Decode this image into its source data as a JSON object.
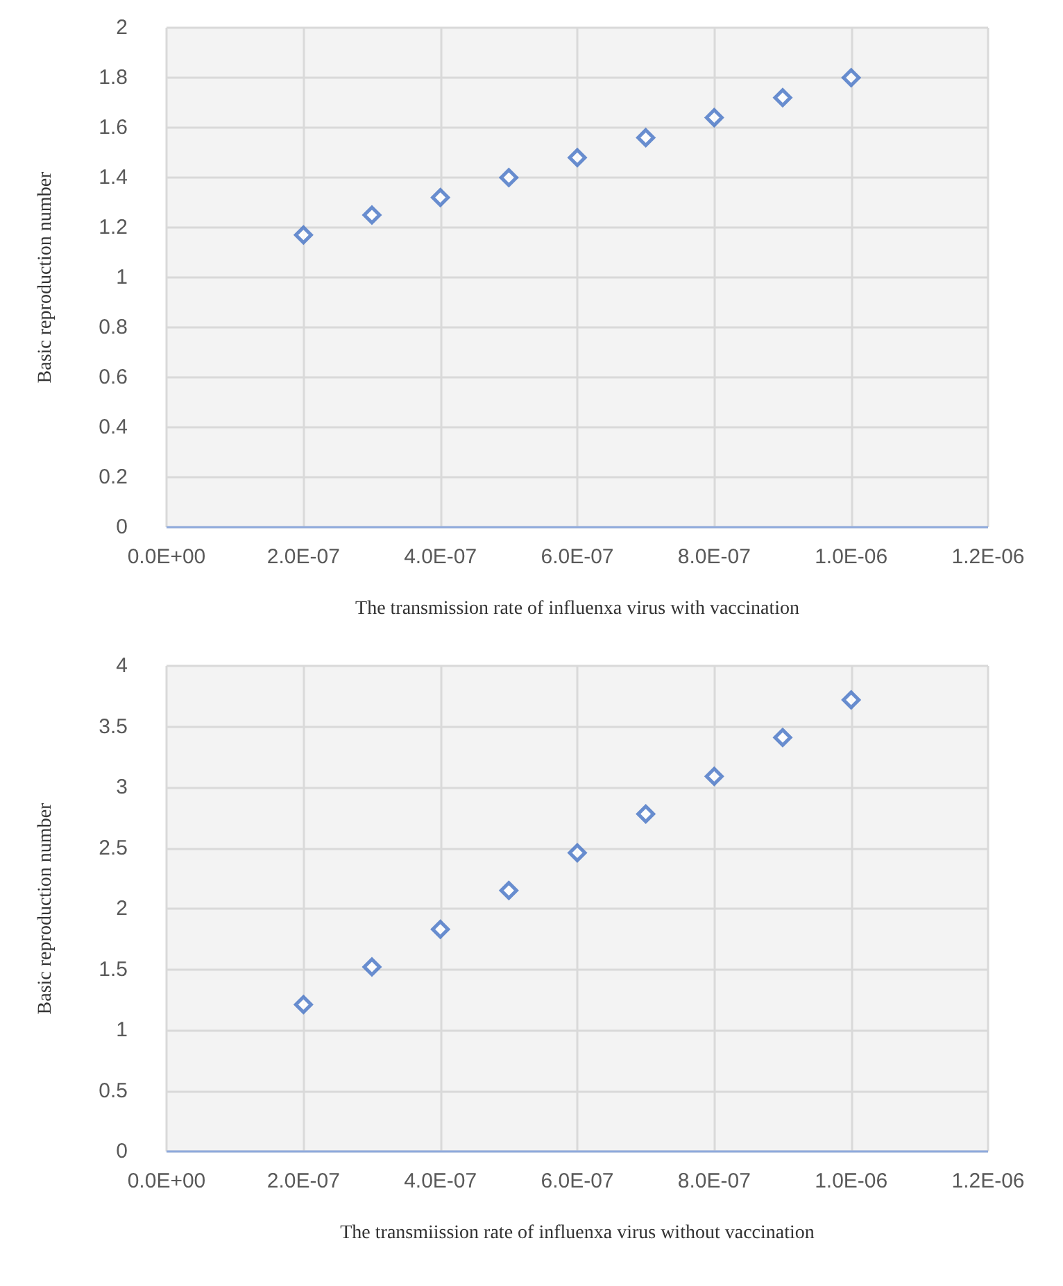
{
  "chart_data": [
    {
      "type": "scatter",
      "xlabel": "The transmission rate of influenxa virus with vaccination",
      "ylabel": "Basic reproduction number",
      "x": [
        2e-07,
        3e-07,
        4e-07,
        5e-07,
        6e-07,
        7e-07,
        8e-07,
        9e-07,
        1e-06
      ],
      "series": [
        {
          "color": "#4472c4",
          "values": [
            1.17,
            1.25,
            1.32,
            1.4,
            1.48,
            1.56,
            1.64,
            1.72,
            1.8
          ]
        }
      ],
      "xlim": [
        0,
        1.2e-06
      ],
      "xticks": [
        {
          "value": 0,
          "label": "0.0E+00"
        },
        {
          "value": 2e-07,
          "label": "2.0E-07"
        },
        {
          "value": 4e-07,
          "label": "4.0E-07"
        },
        {
          "value": 6e-07,
          "label": "6.0E-07"
        },
        {
          "value": 8e-07,
          "label": "8.0E-07"
        },
        {
          "value": 1e-06,
          "label": "1.0E-06"
        },
        {
          "value": 1.2e-06,
          "label": "1.2E-06"
        }
      ],
      "ylim": [
        0,
        2
      ],
      "yticks": [
        0,
        0.2,
        0.4,
        0.6,
        0.8,
        1,
        1.2,
        1.4,
        1.6,
        1.8,
        2
      ],
      "grid": true,
      "marker": "diamond"
    },
    {
      "type": "scatter",
      "xlabel": "The transmiission rate of influenxa virus without vaccination",
      "ylabel": "Basic reproduction number",
      "x": [
        2e-07,
        3e-07,
        4e-07,
        5e-07,
        6e-07,
        7e-07,
        8e-07,
        9e-07,
        1e-06
      ],
      "series": [
        {
          "color": "#4472c4",
          "values": [
            1.21,
            1.52,
            1.83,
            2.15,
            2.46,
            2.78,
            3.09,
            3.41,
            3.72
          ]
        }
      ],
      "xlim": [
        0,
        1.2e-06
      ],
      "xticks": [
        {
          "value": 0,
          "label": "0.0E+00"
        },
        {
          "value": 2e-07,
          "label": "2.0E-07"
        },
        {
          "value": 4e-07,
          "label": "4.0E-07"
        },
        {
          "value": 6e-07,
          "label": "6.0E-07"
        },
        {
          "value": 8e-07,
          "label": "8.0E-07"
        },
        {
          "value": 1e-06,
          "label": "1.0E-06"
        },
        {
          "value": 1.2e-06,
          "label": "1.2E-06"
        }
      ],
      "ylim": [
        0,
        4
      ],
      "yticks": [
        0,
        0.5,
        1,
        1.5,
        2,
        2.5,
        3,
        3.5,
        4
      ],
      "grid": true,
      "marker": "diamond"
    }
  ]
}
